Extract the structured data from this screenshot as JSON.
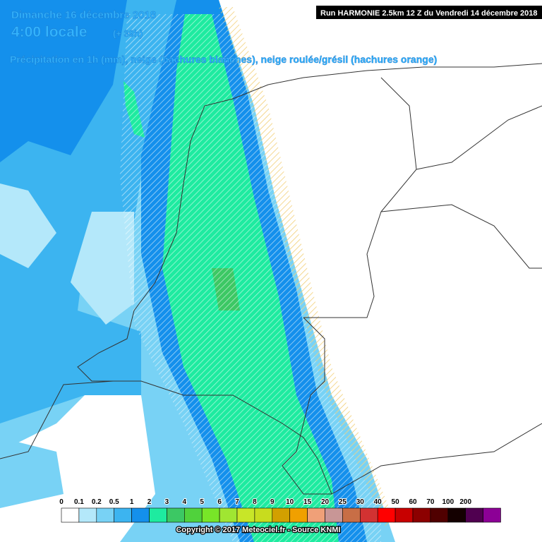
{
  "header": {
    "date": "Dimanche 16 décembre 2018",
    "time": "4:00 locale",
    "offset": "(+ 39h)",
    "description": "Précipitation en 1h (mm), neige (hachures blanches), neige roulée/grésil (hachures orange)",
    "run": "Run HARMONIE 2.5km 12 Z du Vendredi 14 décembre 2018"
  },
  "legend": {
    "items": [
      {
        "label": "0",
        "color": "#ffffff"
      },
      {
        "label": "0.1",
        "color": "#b4e8fa"
      },
      {
        "label": "0.2",
        "color": "#78d2f5"
      },
      {
        "label": "0.5",
        "color": "#3cb4f0"
      },
      {
        "label": "1",
        "color": "#1490ec"
      },
      {
        "label": "2",
        "color": "#1eeba0"
      },
      {
        "label": "3",
        "color": "#3cc864"
      },
      {
        "label": "4",
        "color": "#50d23c"
      },
      {
        "label": "5",
        "color": "#78e628"
      },
      {
        "label": "6",
        "color": "#a0e632"
      },
      {
        "label": "7",
        "color": "#c8e628"
      },
      {
        "label": "8",
        "color": "#c8dc1e"
      },
      {
        "label": "9",
        "color": "#d2a000"
      },
      {
        "label": "10",
        "color": "#f0a000"
      },
      {
        "label": "15",
        "color": "#f0a078"
      },
      {
        "label": "20",
        "color": "#c89696"
      },
      {
        "label": "25",
        "color": "#c86e46"
      },
      {
        "label": "30",
        "color": "#d23232"
      },
      {
        "label": "40",
        "color": "#ff0000"
      },
      {
        "label": "50",
        "color": "#c80000"
      },
      {
        "label": "60",
        "color": "#8c0000"
      },
      {
        "label": "70",
        "color": "#500000"
      },
      {
        "label": "100",
        "color": "#140000"
      },
      {
        "label": "200",
        "color": "#500050"
      },
      {
        "label": "",
        "color": "#8c0096"
      }
    ]
  },
  "footer": {
    "copyright": "Copyright © 2017 Meteociel.fr - Source KNMI"
  }
}
